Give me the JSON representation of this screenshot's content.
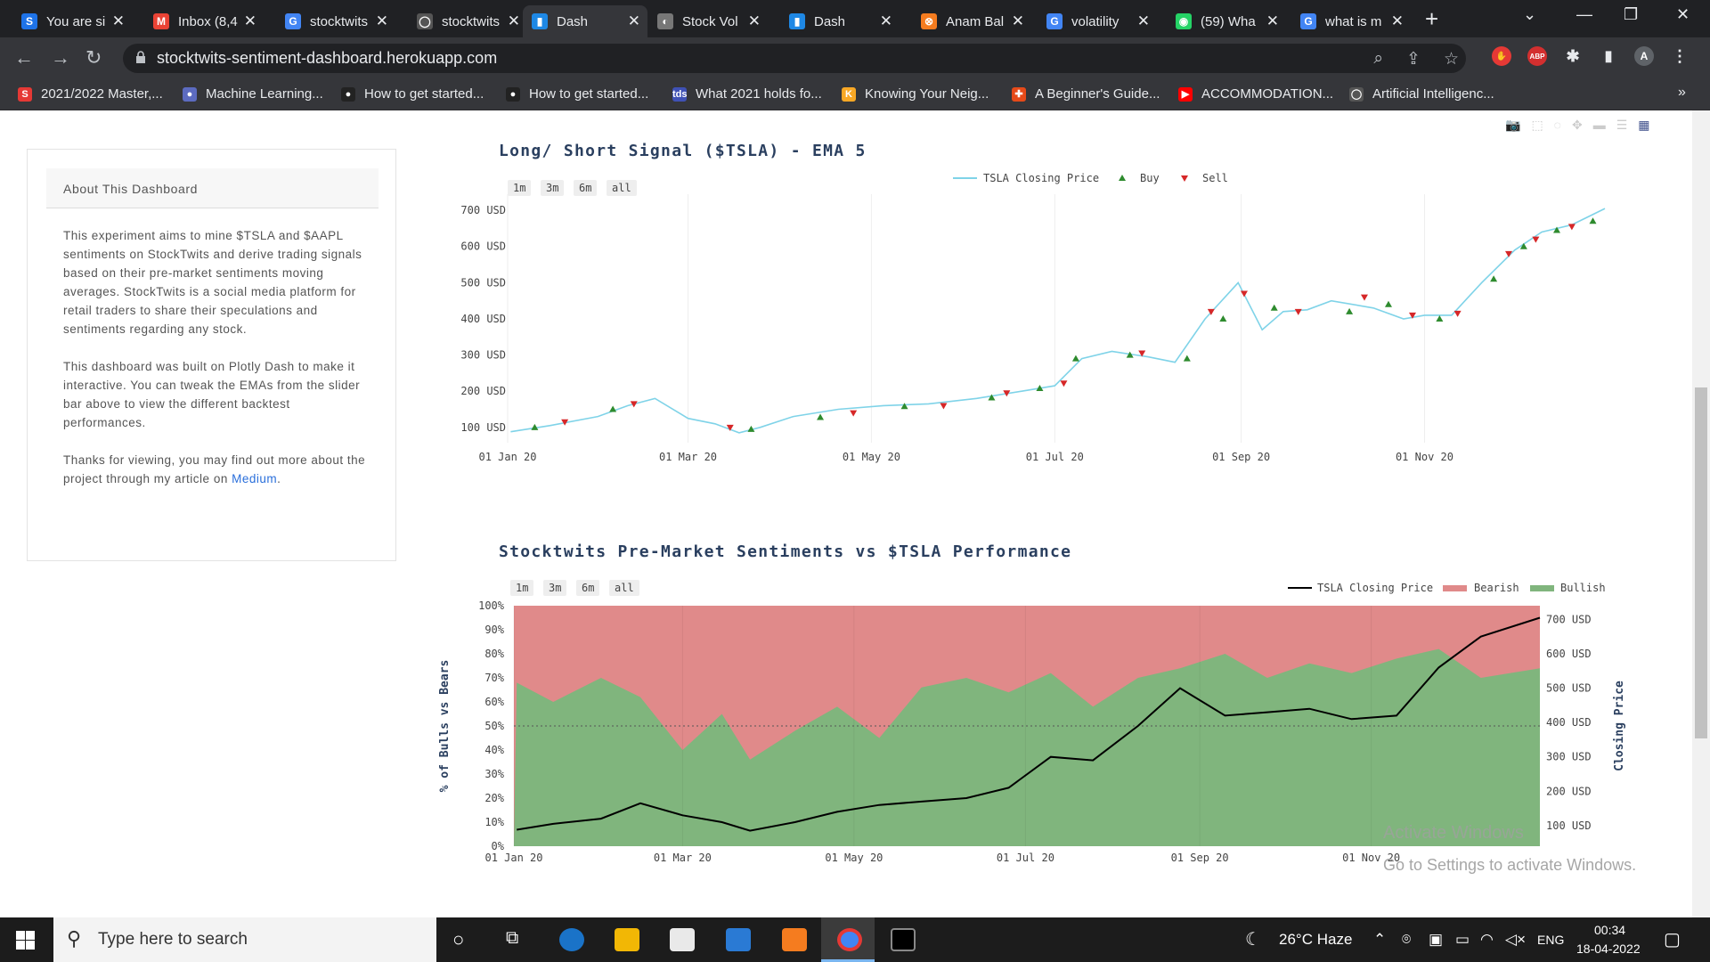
{
  "browser": {
    "tabs": [
      {
        "label": "You are si",
        "favicon": "S",
        "color": "#1e73e8"
      },
      {
        "label": "Inbox (8,4",
        "favicon": "M",
        "color": "#ea4335"
      },
      {
        "label": "stocktwits",
        "favicon": "G",
        "color": "#4285f4"
      },
      {
        "label": "stocktwits",
        "favicon": "◯",
        "color": "#555555"
      },
      {
        "label": "Dash",
        "favicon": "▮",
        "color": "#1e88e5"
      },
      {
        "label": "Stock Vol",
        "favicon": "◐",
        "color": "#777777"
      },
      {
        "label": "Dash",
        "favicon": "▮",
        "color": "#1e88e5"
      },
      {
        "label": "Anam Bal",
        "favicon": "⊗",
        "color": "#f57c1f"
      },
      {
        "label": "volatility",
        "favicon": "G",
        "color": "#4285f4"
      },
      {
        "label": "(59) Wha",
        "favicon": "◉",
        "color": "#25d366"
      },
      {
        "label": "what is m",
        "favicon": "G",
        "color": "#4285f4"
      }
    ],
    "url": "stocktwits-sentiment-dashboard.herokuapp.com",
    "profile_initial": "A",
    "bookmarks": [
      {
        "label": "2021/2022 Master,...",
        "icon": "S",
        "color": "#e53935"
      },
      {
        "label": "Machine Learning...",
        "icon": "●",
        "color": "#5c6bc0"
      },
      {
        "label": "How to get started...",
        "icon": "●",
        "color": "#222222"
      },
      {
        "label": "How to get started...",
        "icon": "●",
        "color": "#222222"
      },
      {
        "label": "What 2021 holds fo...",
        "icon": "tds",
        "color": "#3f51b5"
      },
      {
        "label": "Knowing Your Neig...",
        "icon": "K",
        "color": "#f9a825"
      },
      {
        "label": "A Beginner's Guide...",
        "icon": "✚",
        "color": "#e64a19"
      },
      {
        "label": "ACCOMMODATION...",
        "icon": "▶",
        "color": "#ff0000"
      },
      {
        "label": "Artificial Intelligenc...",
        "icon": "◯",
        "color": "#555555"
      }
    ]
  },
  "about": {
    "title": "About This Dashboard",
    "p1": "This experiment aims to mine $TSLA and $AAPL sentiments on StockTwits and derive trading signals based on their pre-market sentiments moving averages. StockTwits is a social media platform for retail traders to share their speculations and sentiments regarding any stock.",
    "p2": "This dashboard was built on Plotly Dash to make it interactive. You can tweak the EMAs from the slider bar above to view the different backtest performances.",
    "p3": "Thanks for viewing, you may find out more about the project through my article on",
    "link": "Medium",
    "p3_end": "."
  },
  "range_buttons": [
    "1m",
    "3m",
    "6m",
    "all"
  ],
  "chart_data": [
    {
      "type": "line",
      "title": "Long/ Short Signal ($TSLA) - EMA 5",
      "legend": [
        "TSLA Closing Price",
        "Buy",
        "Sell"
      ],
      "legend_position": "top-center",
      "colors": {
        "price": "#7fd3e8",
        "buy": "#2e8b2e",
        "sell": "#d62728"
      },
      "x_ticks": [
        "01 Jan 20",
        "01 Mar 20",
        "01 May 20",
        "01 Jul 20",
        "01 Sep 20",
        "01 Nov 20"
      ],
      "y_ticks": [
        "100 USD",
        "200 USD",
        "300 USD",
        "400 USD",
        "500 USD",
        "600 USD",
        "700 USD"
      ],
      "ylim": [
        70,
        720
      ],
      "x": [
        "2020-01-02",
        "2020-01-15",
        "2020-01-31",
        "2020-02-10",
        "2020-02-19",
        "2020-03-01",
        "2020-03-10",
        "2020-03-18",
        "2020-03-25",
        "2020-04-05",
        "2020-04-20",
        "2020-05-05",
        "2020-05-20",
        "2020-06-05",
        "2020-06-20",
        "2020-07-01",
        "2020-07-10",
        "2020-07-20",
        "2020-08-01",
        "2020-08-10",
        "2020-08-20",
        "2020-08-31",
        "2020-09-08",
        "2020-09-15",
        "2020-09-23",
        "2020-10-01",
        "2020-10-15",
        "2020-10-25",
        "2020-11-01",
        "2020-11-10",
        "2020-11-20",
        "2020-12-01",
        "2020-12-10",
        "2020-12-20",
        "2020-12-31"
      ],
      "values": [
        88,
        105,
        130,
        160,
        180,
        125,
        110,
        85,
        100,
        130,
        150,
        160,
        165,
        180,
        200,
        215,
        290,
        310,
        295,
        280,
        400,
        500,
        370,
        420,
        425,
        450,
        430,
        400,
        410,
        410,
        500,
        590,
        640,
        660,
        705
      ],
      "buy_x": [
        "2020-01-10",
        "2020-02-05",
        "2020-03-22",
        "2020-04-14",
        "2020-05-12",
        "2020-06-10",
        "2020-06-26",
        "2020-07-08",
        "2020-07-26",
        "2020-08-14",
        "2020-08-26",
        "2020-09-12",
        "2020-10-07",
        "2020-10-20",
        "2020-11-06",
        "2020-11-24",
        "2020-12-04",
        "2020-12-15",
        "2020-12-27"
      ],
      "buy_y": [
        100,
        150,
        95,
        128,
        158,
        182,
        208,
        290,
        300,
        290,
        400,
        430,
        420,
        440,
        400,
        510,
        600,
        645,
        670
      ],
      "sell_x": [
        "2020-01-20",
        "2020-02-12",
        "2020-03-15",
        "2020-04-25",
        "2020-05-25",
        "2020-06-15",
        "2020-07-04",
        "2020-07-30",
        "2020-08-22",
        "2020-09-02",
        "2020-09-20",
        "2020-10-12",
        "2020-10-28",
        "2020-11-12",
        "2020-11-29",
        "2020-12-08",
        "2020-12-20"
      ],
      "sell_y": [
        115,
        165,
        100,
        140,
        160,
        195,
        222,
        305,
        420,
        470,
        420,
        460,
        410,
        415,
        580,
        620,
        655
      ]
    },
    {
      "type": "area",
      "title": "Stocktwits Pre-Market Sentiments vs $TSLA Performance",
      "legend": [
        "TSLA Closing Price",
        "Bearish",
        "Bullish"
      ],
      "legend_position": "top-right",
      "colors": {
        "price": "#000000",
        "bearish": "#e08a8a",
        "bullish": "#80b57d"
      },
      "ylabel": "% of Bulls vs Bears",
      "y2label": "Closing Price",
      "x_ticks": [
        "01 Jan 20",
        "01 Mar 20",
        "01 May 20",
        "01 Jul 20",
        "01 Sep 20",
        "01 Nov 20"
      ],
      "y_ticks": [
        "0%",
        "10%",
        "20%",
        "30%",
        "40%",
        "50%",
        "60%",
        "70%",
        "80%",
        "90%",
        "100%"
      ],
      "y2_ticks": [
        "100 USD",
        "200 USD",
        "300 USD",
        "400 USD",
        "500 USD",
        "600 USD",
        "700 USD"
      ],
      "ylim": [
        0,
        100
      ],
      "y2lim": [
        40,
        740
      ],
      "reference_line": 50,
      "x": [
        "2020-01-02",
        "2020-01-15",
        "2020-02-01",
        "2020-02-15",
        "2020-03-01",
        "2020-03-15",
        "2020-03-25",
        "2020-04-10",
        "2020-04-25",
        "2020-05-10",
        "2020-05-25",
        "2020-06-10",
        "2020-06-25",
        "2020-07-10",
        "2020-07-25",
        "2020-08-10",
        "2020-08-25",
        "2020-09-10",
        "2020-09-25",
        "2020-10-10",
        "2020-10-25",
        "2020-11-10",
        "2020-11-25",
        "2020-12-10",
        "2020-12-31"
      ],
      "bullish_pct": [
        68,
        60,
        70,
        62,
        40,
        55,
        36,
        48,
        58,
        45,
        66,
        70,
        64,
        72,
        58,
        70,
        74,
        80,
        70,
        76,
        72,
        78,
        82,
        70,
        74
      ],
      "price": [
        88,
        105,
        120,
        165,
        130,
        110,
        85,
        110,
        140,
        160,
        170,
        180,
        210,
        300,
        290,
        390,
        500,
        420,
        430,
        440,
        410,
        420,
        560,
        650,
        705
      ]
    }
  ],
  "activation": {
    "line1": "Activate Windows",
    "line2": "Go to Settings to activate Windows."
  },
  "taskbar": {
    "search_placeholder": "Type here to search",
    "weather": "26°C  Haze",
    "language": "ENG",
    "time": "00:34",
    "date": "18-04-2022"
  }
}
